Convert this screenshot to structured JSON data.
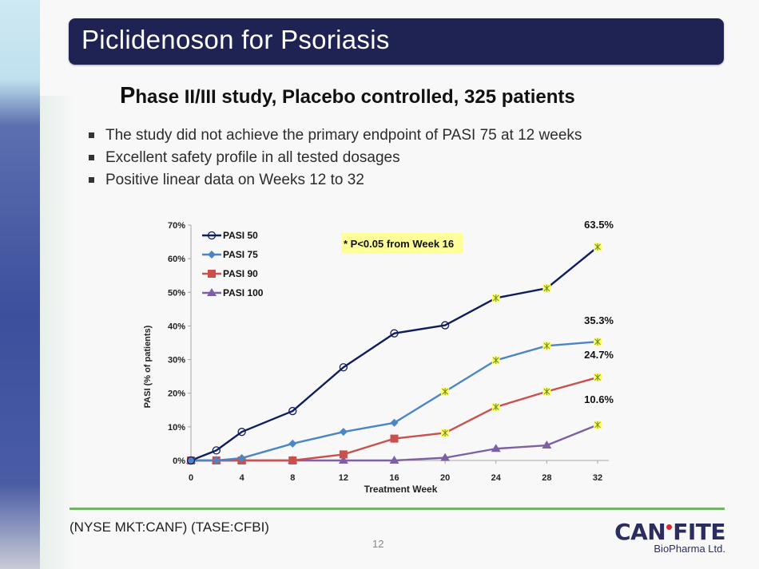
{
  "title": "Piclidenoson for Psoriasis",
  "subtitle": {
    "first_letter": "P",
    "rest": "hase II/III study, Placebo controlled, 325 patients"
  },
  "bullets": [
    "The study did not achieve the primary endpoint of PASI 75 at 12 weeks",
    "Excellent safety profile in all tested dosages",
    "Positive linear data on Weeks 12 to 32"
  ],
  "footer": {
    "ticker": "(NYSE MKT:CANF)  (TASE:CFBI)",
    "page_number": "12",
    "logo_main_left": "CAN",
    "logo_main_right": "FITE",
    "logo_sub": "BioPharma Ltd."
  },
  "chart_data": {
    "type": "line",
    "title": "",
    "xlabel": "Treatment Week",
    "ylabel": "PASI (% of patients)",
    "x": [
      0,
      2,
      4,
      8,
      12,
      16,
      20,
      24,
      28,
      32
    ],
    "x_ticks": [
      0,
      4,
      8,
      12,
      16,
      20,
      24,
      28,
      32
    ],
    "y_ticks": [
      "0%",
      "10%",
      "20%",
      "30%",
      "40%",
      "50%",
      "60%",
      "70%"
    ],
    "ylim": [
      0,
      70
    ],
    "xlim": [
      0,
      32
    ],
    "grid": false,
    "legend_position": "top-left",
    "annotation": "* P<0.05 from Week 16",
    "significance_marker_color": "#ffff66",
    "series": [
      {
        "name": "PASI 50",
        "color": "#0f1d5c",
        "marker": "circle-open",
        "values": [
          0,
          3.0,
          8.5,
          14.7,
          27.7,
          37.8,
          40.2,
          48.3,
          51.2,
          63.5
        ],
        "significant": [
          false,
          false,
          false,
          false,
          false,
          false,
          false,
          true,
          true,
          true
        ],
        "end_label": "63.5%"
      },
      {
        "name": "PASI 75",
        "color": "#4a86c5",
        "marker": "diamond",
        "values": [
          0,
          0,
          0.7,
          5.0,
          8.5,
          11.2,
          20.5,
          29.8,
          34.1,
          35.3
        ],
        "significant": [
          false,
          false,
          false,
          false,
          false,
          false,
          true,
          true,
          true,
          true
        ],
        "end_label": "35.3%"
      },
      {
        "name": "PASI 90",
        "color": "#c9504d",
        "marker": "square",
        "values": [
          0,
          0,
          0,
          0,
          1.8,
          6.5,
          8.2,
          15.9,
          20.5,
          24.7
        ],
        "significant": [
          false,
          false,
          false,
          false,
          false,
          false,
          true,
          true,
          true,
          true
        ],
        "end_label": "24.7%"
      },
      {
        "name": "PASI 100",
        "color": "#7d5fa6",
        "marker": "triangle",
        "values": [
          0,
          0,
          0,
          0,
          0,
          0,
          0.8,
          3.5,
          4.5,
          10.6
        ],
        "significant": [
          false,
          false,
          false,
          false,
          false,
          false,
          false,
          false,
          false,
          true
        ],
        "end_label": "10.6%"
      }
    ]
  }
}
